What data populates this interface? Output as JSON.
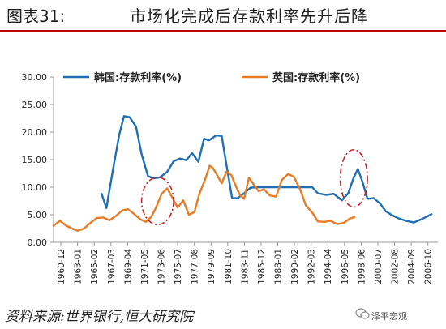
{
  "header": {
    "figure_label": "图表31:",
    "title": "市场化完成后存款利率先升后降"
  },
  "footer": {
    "source": "资料来源:世界银行,恒大研究院",
    "watermark": "泽平宏观",
    "watermark_icon": "chat-bubble-icon"
  },
  "chart_data": {
    "type": "line",
    "title": "",
    "xlabel": "",
    "ylabel": "",
    "ylim": [
      0,
      30
    ],
    "yticks": [
      "0.00",
      "5.00",
      "10.00",
      "15.00",
      "20.00",
      "25.00",
      "30.00"
    ],
    "xticks": [
      "1960-12",
      "1963-01",
      "1965-02",
      "1967-03",
      "1969-04",
      "1971-05",
      "1973-06",
      "1975-07",
      "1977-08",
      "1979-09",
      "1981-10",
      "1983-11",
      "1985-12",
      "1988-01",
      "1990-02",
      "1992-03",
      "1994-04",
      "1996-05",
      "1998-06",
      "2000-07",
      "2002-08",
      "2004-09",
      "2006-10"
    ],
    "xrange": [
      1960,
      2008
    ],
    "grid": false,
    "legend": "top",
    "series": [
      {
        "name": "韩国:存款利率(%)",
        "color": "#1f6fb5",
        "points": [
          [
            1966.0,
            8.8
          ],
          [
            1966.6,
            6.2
          ],
          [
            1967.4,
            13.0
          ],
          [
            1968.2,
            19.5
          ],
          [
            1968.8,
            22.9
          ],
          [
            1969.5,
            22.7
          ],
          [
            1970.3,
            21.0
          ],
          [
            1971.0,
            16.0
          ],
          [
            1971.8,
            12.0
          ],
          [
            1972.5,
            11.6
          ],
          [
            1973.3,
            11.8
          ],
          [
            1974.2,
            12.8
          ],
          [
            1975.0,
            14.7
          ],
          [
            1975.8,
            15.2
          ],
          [
            1976.6,
            14.9
          ],
          [
            1977.3,
            16.2
          ],
          [
            1978.1,
            14.6
          ],
          [
            1978.8,
            18.8
          ],
          [
            1979.4,
            18.5
          ],
          [
            1980.3,
            19.4
          ],
          [
            1981.0,
            19.3
          ],
          [
            1981.6,
            14.0
          ],
          [
            1982.3,
            8.0
          ],
          [
            1983.0,
            8.0
          ],
          [
            1983.8,
            8.9
          ],
          [
            1984.6,
            9.9
          ],
          [
            1985.5,
            10.0
          ],
          [
            1987.0,
            10.0
          ],
          [
            1989.0,
            10.0
          ],
          [
            1991.0,
            10.0
          ],
          [
            1992.3,
            10.0
          ],
          [
            1993.0,
            8.9
          ],
          [
            1994.0,
            8.6
          ],
          [
            1995.0,
            8.8
          ],
          [
            1996.0,
            7.6
          ],
          [
            1996.8,
            8.9
          ],
          [
            1997.5,
            11.8
          ],
          [
            1998.0,
            13.3
          ],
          [
            1998.6,
            10.9
          ],
          [
            1999.2,
            7.9
          ],
          [
            2000.0,
            8.0
          ],
          [
            2000.8,
            7.0
          ],
          [
            2001.5,
            5.6
          ],
          [
            2002.3,
            4.9
          ],
          [
            2003.0,
            4.4
          ],
          [
            2004.0,
            3.9
          ],
          [
            2005.0,
            3.6
          ],
          [
            2006.0,
            4.2
          ],
          [
            2007.2,
            5.1
          ]
        ]
      },
      {
        "name": "英国:存款利率(%)",
        "color": "#e87c24",
        "points": [
          [
            1960.0,
            3.0
          ],
          [
            1960.8,
            3.9
          ],
          [
            1961.5,
            3.1
          ],
          [
            1962.3,
            2.5
          ],
          [
            1963.0,
            2.1
          ],
          [
            1963.8,
            2.5
          ],
          [
            1964.6,
            3.5
          ],
          [
            1965.4,
            4.4
          ],
          [
            1966.2,
            4.5
          ],
          [
            1967.0,
            4.0
          ],
          [
            1967.8,
            4.8
          ],
          [
            1968.6,
            5.8
          ],
          [
            1969.3,
            6.0
          ],
          [
            1970.0,
            5.2
          ],
          [
            1970.8,
            4.2
          ],
          [
            1971.5,
            3.7
          ],
          [
            1972.2,
            4.6
          ],
          [
            1972.8,
            6.3
          ],
          [
            1973.5,
            8.8
          ],
          [
            1974.2,
            9.8
          ],
          [
            1974.8,
            8.2
          ],
          [
            1975.5,
            6.3
          ],
          [
            1976.2,
            7.6
          ],
          [
            1976.9,
            5.0
          ],
          [
            1977.6,
            5.5
          ],
          [
            1978.2,
            8.7
          ],
          [
            1978.9,
            11.3
          ],
          [
            1979.5,
            13.9
          ],
          [
            1979.9,
            13.5
          ],
          [
            1980.5,
            12.0
          ],
          [
            1981.0,
            10.7
          ],
          [
            1981.6,
            12.8
          ],
          [
            1982.2,
            12.2
          ],
          [
            1982.8,
            10.1
          ],
          [
            1983.3,
            8.5
          ],
          [
            1983.8,
            7.9
          ],
          [
            1984.4,
            11.7
          ],
          [
            1985.0,
            10.5
          ],
          [
            1985.6,
            9.3
          ],
          [
            1986.3,
            9.6
          ],
          [
            1987.0,
            8.5
          ],
          [
            1987.8,
            8.3
          ],
          [
            1988.5,
            11.3
          ],
          [
            1989.3,
            12.4
          ],
          [
            1990.0,
            11.9
          ],
          [
            1990.8,
            9.6
          ],
          [
            1991.5,
            6.7
          ],
          [
            1992.3,
            5.4
          ],
          [
            1993.0,
            3.8
          ],
          [
            1993.8,
            3.7
          ],
          [
            1994.6,
            3.9
          ],
          [
            1995.4,
            3.3
          ],
          [
            1996.2,
            3.5
          ],
          [
            1997.0,
            4.3
          ],
          [
            1997.6,
            4.6
          ]
        ]
      }
    ],
    "annotations": [
      {
        "type": "ellipse",
        "x": 1973.0,
        "y": 7.5,
        "rx_years": 2.0,
        "ry_value": 4.3,
        "color": "#c0282d"
      },
      {
        "type": "ellipse",
        "x": 1997.5,
        "y": 11.6,
        "rx_years": 1.7,
        "ry_value": 5.2,
        "color": "#c0282d"
      }
    ]
  }
}
